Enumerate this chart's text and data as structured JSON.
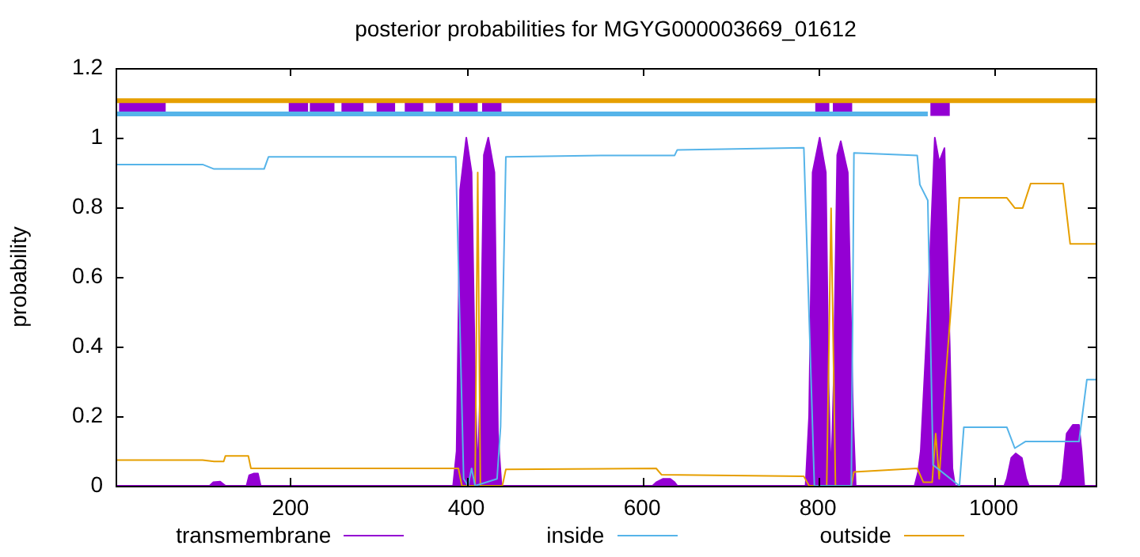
{
  "chart_data": {
    "type": "line",
    "title": "posterior probabilities for MGYG000003669_01612",
    "ylabel": "probability",
    "xlim": [
      1,
      1116
    ],
    "xticks": [
      200,
      400,
      600,
      800,
      1000
    ],
    "ylim": [
      0,
      1.2
    ],
    "yticks": [
      0,
      0.2,
      0.4,
      0.6,
      0.8,
      1,
      1.2
    ],
    "grid": false,
    "legend": "bottom",
    "marker": "none",
    "line_style": "solid",
    "series": [
      {
        "name": "transmembrane",
        "type": "area",
        "color": "#9400d3",
        "x": [
          1,
          108,
          112,
          120,
          126,
          150,
          153,
          158,
          163,
          166,
          385,
          389,
          393,
          400,
          406,
          410,
          413,
          416,
          420,
          425,
          432,
          436,
          440,
          612,
          616,
          624,
          632,
          637,
          640,
          786,
          790,
          794,
          802,
          809,
          812,
          815,
          818,
          822,
          826,
          834,
          840,
          843,
          910,
          914,
          917,
          925,
          933,
          938,
          944,
          950,
          953,
          956,
          1012,
          1015,
          1020,
          1025,
          1032,
          1037,
          1040,
          1075,
          1078,
          1083,
          1090,
          1097,
          1100,
          1103,
          1116
        ],
        "values": [
          0,
          0,
          0.01,
          0.012,
          0,
          0,
          0.03,
          0.035,
          0.035,
          0,
          0,
          0.1,
          0.85,
          1,
          0.9,
          0.3,
          0.02,
          0.3,
          0.95,
          1,
          0.9,
          0.15,
          0,
          0,
          0.01,
          0.02,
          0.02,
          0.01,
          0,
          0,
          0.2,
          0.9,
          1,
          0.9,
          0.3,
          0.01,
          0.3,
          0.95,
          0.99,
          0.9,
          0.2,
          0,
          0,
          0.04,
          0.1,
          0.5,
          1,
          0.93,
          0.97,
          0.4,
          0.05,
          0,
          0,
          0.02,
          0.08,
          0.093,
          0.08,
          0.02,
          0,
          0,
          0.02,
          0.15,
          0.175,
          0.175,
          0.1,
          0,
          0
        ]
      },
      {
        "name": "inside",
        "type": "line",
        "color": "#56b4e9",
        "x": [
          1,
          100,
          113,
          170,
          175,
          388,
          397,
          402,
          406,
          410,
          435,
          439,
          445,
          553,
          637,
          640,
          784,
          796,
          838,
          841,
          913,
          916,
          925,
          931,
          961,
          966,
          1015,
          1024,
          1036,
          1097,
          1106,
          1116
        ],
        "values": [
          0.923,
          0.923,
          0.91,
          0.91,
          0.945,
          0.945,
          0.02,
          0,
          0.05,
          0,
          0.02,
          0.17,
          0.945,
          0.949,
          0.949,
          0.965,
          0.971,
          0,
          0,
          0.956,
          0.949,
          0.865,
          0.82,
          0.06,
          0,
          0.168,
          0.168,
          0.108,
          0.127,
          0.127,
          0.305,
          0.305
        ]
      },
      {
        "name": "outside",
        "type": "line",
        "color": "#e69f00",
        "x": [
          1,
          100,
          113,
          124,
          126,
          152,
          155,
          391,
          395,
          410,
          413,
          416,
          420,
          441,
          445,
          616,
          622,
          784,
          790,
          810,
          815,
          820,
          826,
          838,
          841,
          913,
          920,
          930,
          934,
          938,
          945,
          961,
          1015,
          1024,
          1033,
          1042,
          1079,
          1087,
          1116
        ],
        "values": [
          0.074,
          0.074,
          0.07,
          0.07,
          0.086,
          0.086,
          0.05,
          0.05,
          0,
          0,
          0.9,
          0,
          0,
          0,
          0.047,
          0.05,
          0.032,
          0.027,
          0,
          0,
          0.797,
          0,
          0,
          0,
          0.04,
          0.05,
          0.01,
          0.01,
          0.15,
          0.02,
          0.3,
          0.827,
          0.827,
          0.798,
          0.798,
          0.868,
          0.868,
          0.695,
          0.695
        ]
      },
      {
        "type": "line",
        "color": "#56b4e9",
        "x": [
          1,
          925
        ],
        "values": [
          1.068,
          1.068
        ]
      },
      {
        "type": "line",
        "color": "#e69f00",
        "x": [
          1,
          1116
        ],
        "values": [
          1.106,
          1.106
        ]
      },
      {
        "type": "line",
        "color": "#9400d3",
        "x": [
          5,
          58,
          59,
          198,
          220,
          221,
          222,
          250,
          251,
          258,
          283,
          284,
          298,
          319,
          320,
          330,
          351,
          352,
          365,
          385,
          386,
          392,
          413,
          414,
          418,
          440,
          441,
          797,
          813,
          814,
          817,
          839,
          840,
          928,
          950
        ],
        "values": [
          1.085,
          1.085,
          null,
          1.085,
          1.085,
          null,
          1.085,
          1.085,
          null,
          1.085,
          1.085,
          null,
          1.085,
          1.085,
          null,
          1.085,
          1.085,
          null,
          1.085,
          1.085,
          null,
          1.085,
          1.085,
          null,
          1.085,
          1.085,
          null,
          1.085,
          1.085,
          null,
          1.085,
          1.085,
          null,
          1.085,
          1.085
        ]
      }
    ]
  }
}
